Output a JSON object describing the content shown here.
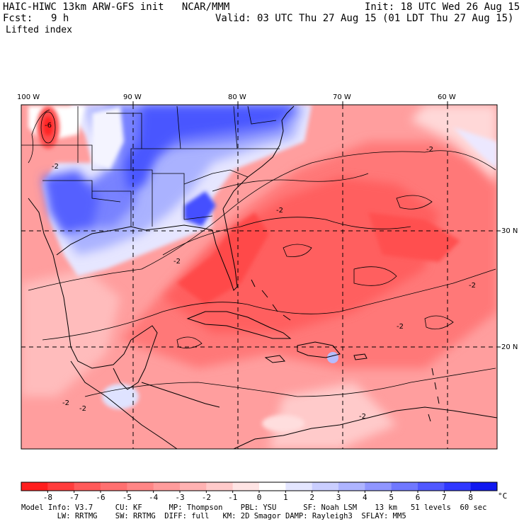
{
  "header": {
    "title": "HAIC-HIWC 13km ARW-GFS init   NCAR/MMM",
    "init": "Init: 18 UTC Wed 26 Aug 15",
    "fcst_label": "Fcst:",
    "fcst_value": "9 h",
    "valid": "Valid: 03 UTC Thu 27 Aug 15 (01 LDT Thu 27 Aug 15)",
    "field": "Lifted index"
  },
  "map": {
    "lon_labels": [
      "100 W",
      "90 W",
      "80 W",
      "70 W",
      "60 W"
    ],
    "lat_labels": [
      "30 N",
      "20 N"
    ],
    "contour_labels": [
      "-6",
      "-2",
      "-2",
      "-2",
      "-2",
      "-2",
      "-2",
      "-2",
      "-2",
      "-2"
    ]
  },
  "colorbar": {
    "ticks": [
      "-8",
      "-7",
      "-6",
      "-5",
      "-4",
      "-3",
      "-2",
      "-1",
      "0",
      "1",
      "2",
      "3",
      "4",
      "5",
      "6",
      "7",
      "8"
    ],
    "unit": "°C",
    "colors": [
      "#ff1e1e",
      "#ff3c3c",
      "#ff5a5a",
      "#ff7070",
      "#ff8686",
      "#ff9c9c",
      "#ffb2b2",
      "#ffcaca",
      "#ffe4e4",
      "#ffffff",
      "#e4e6ff",
      "#caceff",
      "#aeb4ff",
      "#9096ff",
      "#7078ff",
      "#5058ff",
      "#3038ff",
      "#1018f0"
    ]
  },
  "footer": {
    "line1": "Model Info: V3.7     CU: KF      MP: Thompson    PBL: YSU      SF: Noah LSM    13 km   51 levels  60 sec",
    "line2": "        LW: RRTMG    SW: RRTMG  DIFF: full   KM: 2D Smagor DAMP: Rayleigh3  SFLAY: MM5"
  }
}
